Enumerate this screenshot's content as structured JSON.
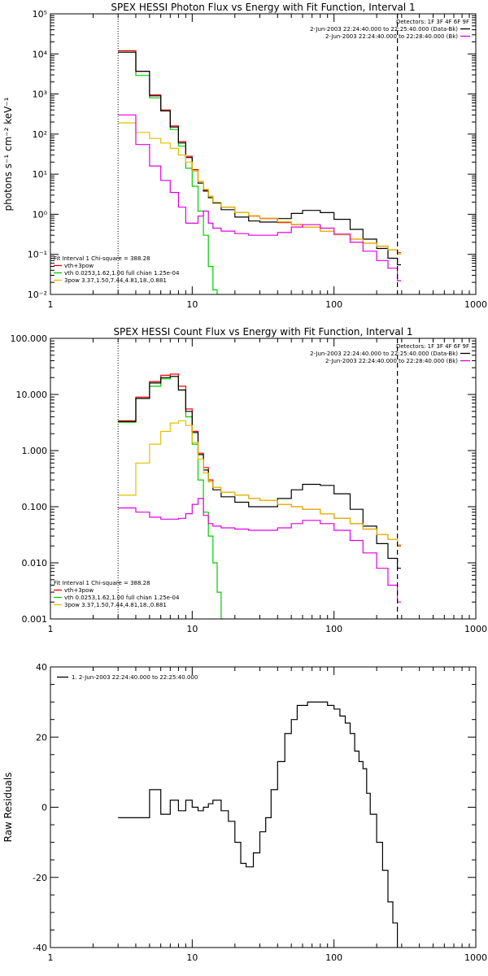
{
  "chart_data": [
    {
      "type": "line",
      "title": "SPEX HESSI Photon Flux vs Energy with Fit Function, Interval 1",
      "xlabel": "",
      "ylabel": "photons s⁻¹ cm⁻² keV⁻¹",
      "x_scale": "log",
      "y_scale": "log",
      "xlim": [
        1,
        1000
      ],
      "ylim": [
        0.01,
        100000
      ],
      "x_ticks": [
        "1",
        "10",
        "100",
        "1000"
      ],
      "y_ticks": [
        "10⁻²",
        "10⁻¹",
        "10⁰",
        "10¹",
        "10²",
        "10³",
        "10⁴",
        "10⁵"
      ],
      "detectors_label": "Detectors: 1F 3F 4F 6F 9F",
      "legend": [
        {
          "text": "2-Jun-2003 22:24:40.000 to 22:25:40.000 (Data-Bk)",
          "color": "#000000"
        },
        {
          "text": "2-Jun-2003 22:24:40.000 to 22:28:40.000 (Bk)",
          "color": "#e000e0"
        }
      ],
      "fit_info": "Fit Interval 1    Chi-square = 388.28",
      "fit_legend": [
        {
          "text": "vth+3pow",
          "color": "#ff0000"
        },
        {
          "text": "vth 0.0253,1.62,1.00  full chian 1.25e-04",
          "color": "#00cc00"
        },
        {
          "text": "3pow 3.37,1.50,7.44,4.81,18.,0.881",
          "color": "#e0c000"
        }
      ],
      "vlines": [
        3,
        280
      ],
      "series": [
        {
          "color": "#00cc00",
          "x": [
            3,
            4,
            5,
            6,
            7,
            8,
            9,
            10,
            11,
            12,
            13,
            14,
            15
          ],
          "y": [
            11000,
            2900,
            800,
            380,
            130,
            50,
            14,
            5,
            1.2,
            0.3,
            0.05,
            0.013,
            0.006
          ]
        },
        {
          "color": "#ff0000",
          "x": [
            3,
            4,
            5,
            6,
            7,
            8,
            9,
            10,
            11,
            12,
            13,
            14,
            16,
            20,
            25,
            30,
            40,
            50,
            60,
            80,
            100,
            130,
            160,
            200,
            240,
            280
          ],
          "y": [
            12000,
            3700,
            950,
            400,
            160,
            65,
            28,
            13,
            6.5,
            4,
            2.8,
            2,
            1.5,
            1.1,
            0.9,
            0.78,
            0.62,
            0.55,
            0.48,
            0.38,
            0.31,
            0.24,
            0.19,
            0.16,
            0.13,
            0.11
          ]
        },
        {
          "color": "#000000",
          "x": [
            3,
            4,
            5,
            6,
            7,
            8,
            9,
            10,
            11,
            12,
            13,
            14,
            16,
            20,
            25,
            30,
            40,
            50,
            60,
            80,
            100,
            130,
            160,
            200,
            240,
            280
          ],
          "y": [
            11000,
            3700,
            900,
            380,
            150,
            60,
            26,
            12,
            6,
            3.8,
            2.6,
            1.9,
            1.3,
            0.85,
            0.68,
            0.64,
            0.78,
            1.05,
            1.25,
            1.1,
            0.75,
            0.42,
            0.24,
            0.14,
            0.08,
            0.055
          ]
        },
        {
          "color": "#e0c000",
          "x": [
            3,
            4,
            5,
            6,
            7,
            8,
            9,
            10,
            11,
            12,
            13,
            14,
            16,
            20,
            25,
            30,
            40,
            50,
            60,
            80,
            100,
            130,
            160,
            200,
            240,
            280
          ],
          "y": [
            190,
            110,
            78,
            60,
            44,
            30,
            20,
            12,
            6.5,
            4.2,
            2.8,
            2.0,
            1.5,
            1.1,
            0.92,
            0.8,
            0.65,
            0.56,
            0.48,
            0.38,
            0.31,
            0.24,
            0.19,
            0.16,
            0.13,
            0.1
          ]
        },
        {
          "color": "#e000e0",
          "x": [
            3,
            4,
            5,
            6,
            7,
            8,
            9,
            10,
            11,
            12,
            13,
            14,
            16,
            20,
            25,
            30,
            40,
            50,
            60,
            80,
            100,
            130,
            160,
            200,
            240,
            280
          ],
          "y": [
            300,
            55,
            16,
            7,
            3.5,
            1.5,
            0.6,
            0.6,
            0.9,
            1.2,
            0.6,
            0.45,
            0.38,
            0.33,
            0.3,
            0.3,
            0.35,
            0.48,
            0.55,
            0.45,
            0.32,
            0.2,
            0.12,
            0.07,
            0.045,
            0.022
          ]
        }
      ]
    },
    {
      "type": "line",
      "title": "SPEX HESSI Count Flux vs Energy with Fit Function, Interval 1",
      "xlabel": "",
      "ylabel": "",
      "x_scale": "log",
      "y_scale": "log",
      "xlim": [
        1,
        1000
      ],
      "ylim": [
        0.001,
        100
      ],
      "x_ticks": [
        "1",
        "10",
        "100",
        "1000"
      ],
      "y_ticks": [
        "0.001",
        "0.010",
        "0.100",
        "1.000",
        "10.000",
        "100.000"
      ],
      "detectors_label": "Detectors: 1F 3F 4F 6F 9F",
      "legend": [
        {
          "text": "2-Jun-2003 22:24:40.000 to 22:25:40.000 (Data-Bk)",
          "color": "#000000"
        },
        {
          "text": "2-Jun-2003 22:24:40.000 to 22:28:40.000 (Bk)",
          "color": "#e000e0"
        }
      ],
      "fit_info": "Fit Interval 1    Chi-square = 388.28",
      "fit_legend": [
        {
          "text": "vth+3pow",
          "color": "#ff0000"
        },
        {
          "text": "vth 0.0253,1.62,1.00  full chian 1.25e-04",
          "color": "#00cc00"
        },
        {
          "text": "3pow 3.37,1.50,7.44,4.81,18.,0.881",
          "color": "#e0c000"
        }
      ],
      "vlines": [
        3,
        280
      ],
      "series": [
        {
          "color": "#00cc00",
          "x": [
            3,
            4,
            5,
            6,
            7,
            8,
            9,
            10,
            11,
            12,
            13,
            14,
            15,
            16
          ],
          "y": [
            3.2,
            8.5,
            14,
            19,
            21,
            12,
            4,
            1.3,
            0.3,
            0.08,
            0.03,
            0.01,
            0.003,
            0.001
          ]
        },
        {
          "color": "#ff0000",
          "x": [
            3,
            4,
            5,
            6,
            7,
            8,
            9,
            10,
            11,
            12,
            13,
            14,
            16,
            20,
            25,
            30,
            40,
            50,
            60,
            80,
            100,
            130,
            160,
            200,
            240,
            280
          ],
          "y": [
            3.4,
            9,
            17,
            22,
            23,
            14,
            5.5,
            2.2,
            0.9,
            0.5,
            0.3,
            0.22,
            0.18,
            0.16,
            0.14,
            0.13,
            0.11,
            0.1,
            0.09,
            0.075,
            0.062,
            0.05,
            0.04,
            0.032,
            0.026,
            0.02
          ]
        },
        {
          "color": "#000000",
          "x": [
            3,
            4,
            5,
            6,
            7,
            8,
            9,
            10,
            11,
            12,
            13,
            14,
            16,
            20,
            25,
            30,
            40,
            50,
            60,
            80,
            100,
            130,
            160,
            200,
            240,
            280
          ],
          "y": [
            3.3,
            8.5,
            16,
            20,
            21,
            12,
            5,
            2.1,
            0.85,
            0.45,
            0.28,
            0.2,
            0.15,
            0.12,
            0.1,
            0.1,
            0.14,
            0.2,
            0.25,
            0.24,
            0.17,
            0.09,
            0.045,
            0.022,
            0.012,
            0.008
          ]
        },
        {
          "color": "#e0c000",
          "x": [
            3,
            4,
            5,
            6,
            7,
            8,
            9,
            10,
            11,
            12,
            13,
            14,
            16,
            20,
            25,
            30,
            40,
            50,
            60,
            80,
            100,
            130,
            160,
            200,
            240,
            280
          ],
          "y": [
            0.16,
            0.6,
            1.3,
            2.2,
            3.1,
            3.4,
            2.8,
            1.4,
            0.7,
            0.4,
            0.28,
            0.22,
            0.18,
            0.16,
            0.14,
            0.13,
            0.11,
            0.1,
            0.09,
            0.075,
            0.062,
            0.05,
            0.04,
            0.032,
            0.026,
            0.021
          ]
        },
        {
          "color": "#e000e0",
          "x": [
            3,
            4,
            5,
            6,
            7,
            8,
            9,
            10,
            11,
            12,
            13,
            14,
            16,
            20,
            25,
            30,
            40,
            50,
            60,
            80,
            100,
            130,
            160,
            200,
            240,
            280
          ],
          "y": [
            0.095,
            0.08,
            0.065,
            0.06,
            0.06,
            0.062,
            0.075,
            0.11,
            0.14,
            0.07,
            0.05,
            0.045,
            0.042,
            0.04,
            0.038,
            0.038,
            0.042,
            0.05,
            0.057,
            0.05,
            0.038,
            0.025,
            0.015,
            0.008,
            0.004,
            0.002
          ]
        }
      ]
    },
    {
      "type": "line",
      "title": "",
      "xlabel": "",
      "ylabel": "Raw Residuals",
      "x_scale": "log",
      "y_scale": "linear",
      "xlim": [
        1,
        1000
      ],
      "ylim": [
        -40,
        40
      ],
      "x_ticks": [
        "1",
        "10",
        "100",
        "1000"
      ],
      "y_ticks": [
        "-40",
        "-20",
        "0",
        "20",
        "40"
      ],
      "legend": [
        {
          "text": "1.  2-Jun-2003 22:24:40.000 to 22:25:40.000",
          "color": "#000000"
        }
      ],
      "series": [
        {
          "color": "#000000",
          "x": [
            3,
            4,
            5,
            6,
            7,
            8,
            9,
            10,
            11,
            12,
            13,
            14,
            16,
            18,
            20,
            22,
            24,
            27,
            30,
            33,
            36,
            40,
            45,
            50,
            55,
            60,
            65,
            70,
            80,
            90,
            100,
            110,
            120,
            130,
            140,
            150,
            160,
            170,
            180,
            200,
            220,
            240,
            260,
            280
          ],
          "y": [
            -3,
            -3,
            5,
            -2,
            2,
            -1,
            2,
            0,
            -1,
            0,
            1,
            2,
            -1,
            -4,
            -10,
            -16,
            -17,
            -13,
            -7,
            -3,
            5,
            13,
            21,
            25,
            29,
            29,
            30,
            30,
            30,
            29,
            28,
            26,
            24,
            21,
            16,
            13,
            11,
            4,
            -2,
            -10,
            -18,
            -27,
            -33,
            -41
          ]
        }
      ]
    }
  ]
}
